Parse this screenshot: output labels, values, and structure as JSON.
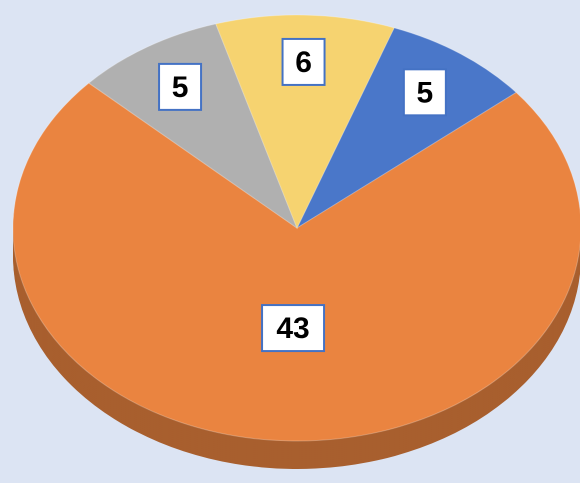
{
  "chart_data": {
    "type": "pie",
    "values": [
      5,
      43,
      5,
      6
    ],
    "colors": [
      "#4a77c9",
      "#ea8440",
      "#b0b0b0",
      "#f6d370"
    ],
    "start_angle": 20,
    "three_d": true
  }
}
